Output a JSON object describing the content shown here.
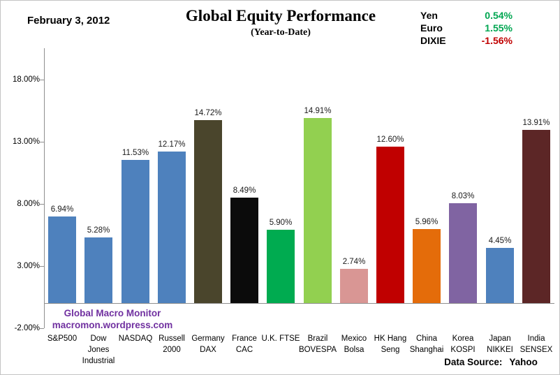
{
  "header": {
    "date": "February 3, 2012",
    "title": "Global Equity Performance",
    "subtitle": "(Year-to-Date)"
  },
  "currency_legend": {
    "items": [
      {
        "label": "Yen",
        "value": "0.54%",
        "value_color": "#00A651"
      },
      {
        "label": "Euro",
        "value": "1.55%",
        "value_color": "#00A651"
      },
      {
        "label": "DIXIE",
        "value": "-1.56%",
        "value_color": "#C00000"
      }
    ]
  },
  "watermark": {
    "line1": "Global Macro Monitor",
    "line2": "macromon.wordpress.com",
    "color": "#7030A0"
  },
  "footer": {
    "data_source_label": "Data Source:",
    "data_source_value": "Yahoo"
  },
  "chart_data": {
    "type": "bar",
    "title": "Global Equity Performance",
    "subtitle": "(Year-to-Date)",
    "date": "February 3, 2012",
    "categories": [
      "S&P500",
      "Dow Jones Industrial",
      "NASDAQ",
      "Russell 2000",
      "Germany DAX",
      "France CAC",
      "U.K. FTSE",
      "Brazil BOVESPA",
      "Mexico Bolsa",
      "HK Hang Seng",
      "China Shanghai",
      "Korea KOSPI",
      "Japan NIKKEI",
      "India SENSEX"
    ],
    "category_label_lines": [
      [
        "S&P500"
      ],
      [
        "Dow",
        "Jones",
        "Industrial"
      ],
      [
        "NASDAQ"
      ],
      [
        "Russell",
        "2000"
      ],
      [
        "Germany",
        "DAX"
      ],
      [
        "France",
        "CAC"
      ],
      [
        "U.K. FTSE"
      ],
      [
        "Brazil",
        "BOVESPA"
      ],
      [
        "Mexico",
        "Bolsa"
      ],
      [
        "HK Hang",
        "Seng"
      ],
      [
        "China",
        "Shanghai"
      ],
      [
        "Korea",
        "KOSPI"
      ],
      [
        "Japan",
        "NIKKEI"
      ],
      [
        "India",
        "SENSEX"
      ]
    ],
    "values": [
      6.94,
      5.28,
      11.53,
      12.17,
      14.72,
      8.49,
      5.9,
      14.91,
      2.74,
      12.6,
      5.96,
      8.03,
      4.45,
      13.91
    ],
    "value_labels": [
      "6.94%",
      "5.28%",
      "11.53%",
      "12.17%",
      "14.72%",
      "8.49%",
      "5.90%",
      "14.91%",
      "2.74%",
      "12.60%",
      "5.96%",
      "8.03%",
      "4.45%",
      "13.91%"
    ],
    "bar_colors": [
      "#4E81BD",
      "#4E81BD",
      "#4E81BD",
      "#4E81BD",
      "#4A452C",
      "#0B0B0B",
      "#00AB50",
      "#92D050",
      "#D99694",
      "#C00000",
      "#E46C0A",
      "#8064A2",
      "#4E81BD",
      "#5C2626"
    ],
    "xlabel": "",
    "ylabel": "",
    "yticks": [
      {
        "value": 18,
        "label": "18.00%"
      },
      {
        "value": 13,
        "label": "13.00%"
      },
      {
        "value": 8,
        "label": "8.00%"
      },
      {
        "value": 3,
        "label": "3.00%"
      },
      {
        "value": -2,
        "label": "-2.00%"
      }
    ],
    "ylim": [
      -2,
      20.5
    ],
    "grid": false,
    "legend_position": "top-right"
  }
}
